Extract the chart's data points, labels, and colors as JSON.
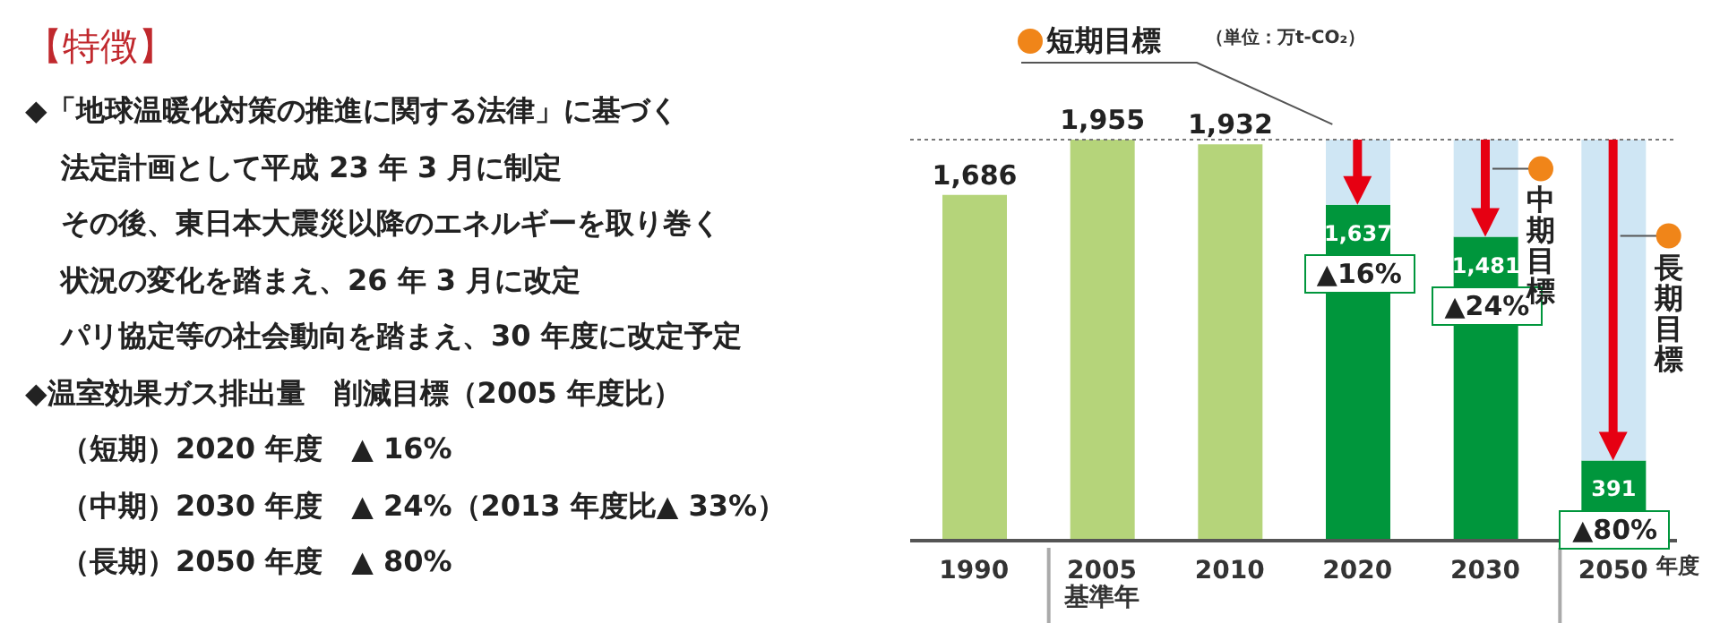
{
  "chart_data": {
    "type": "bar",
    "title": "【特徴】",
    "annotations": [
      "◆「地球温暖化対策の推進に関する法律」に基づく",
      "法定計画として平成 23 年 3 月に制定",
      "その後、東日本大震災以降のエネルギーを取り巻く",
      "状況の変化を踏まえ、26 年 3 月に改定",
      "パリ協定等の社会動向を踏まえ、30 年度に改定予定",
      "◆温室効果ガス排出量　削減目標（2005 年度比）",
      "（短期）2020 年度　▲ 16%",
      "（中期）2030 年度　▲ 24%（2013 年度比▲ 33%）",
      "（長期）2050 年度　▲ 80%",
      "（単位：万t-CO₂）",
      "短期目標",
      "中期目標",
      "長期目標",
      {
        "text": "▲16%",
        "x": "2020",
        "y": 1637
      },
      {
        "text": "▲24%",
        "x": "2030",
        "y": 1481
      },
      {
        "text": "▲80%",
        "x": "2050",
        "y": 391
      }
    ],
    "xlabel": "年度",
    "categories": [
      "1990",
      "2005\n基準年",
      "2010",
      "2020",
      "2030",
      "2050"
    ],
    "stacked": true,
    "series": [
      {
        "colors": [
          "#b5d47a",
          "#b5d47a",
          "#b5d47a",
          "#00963c",
          "#00963c",
          "#00963c"
        ],
        "values": [
          1686,
          1955,
          1932,
          1637,
          1481,
          391
        ],
        "value_labels": [
          "1,686",
          "1,955",
          "1,932",
          "1,637",
          "1,481",
          "391"
        ]
      },
      {
        "color": "#cfe6f4",
        "values": [
          null,
          null,
          null,
          318,
          474,
          1564
        ]
      }
    ],
    "ref_lines": [
      {
        "axis": "y",
        "value": 1955,
        "line_style": "dotted",
        "color": "#777777"
      }
    ],
    "tick_labels": "x"
  }
}
